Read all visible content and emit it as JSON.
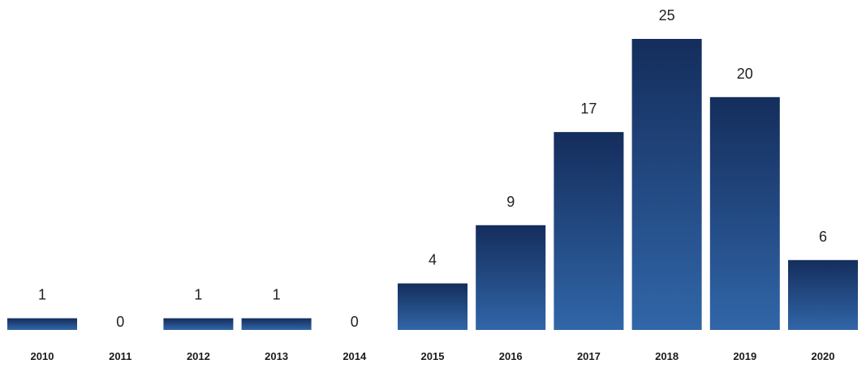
{
  "chart_data": {
    "type": "bar",
    "categories": [
      "2010",
      "2011",
      "2012",
      "2013",
      "2014",
      "2015",
      "2016",
      "2017",
      "2018",
      "2019",
      "2020"
    ],
    "values": [
      1,
      0,
      1,
      1,
      0,
      4,
      9,
      17,
      25,
      20,
      6
    ],
    "title": "",
    "xlabel": "",
    "ylabel": "",
    "ylim": [
      0,
      25
    ],
    "grid": false,
    "legend": "none",
    "colors": {
      "bar_top": "#142d5c",
      "bar_bottom": "#3166a8",
      "text": "#1f1f1f"
    }
  }
}
